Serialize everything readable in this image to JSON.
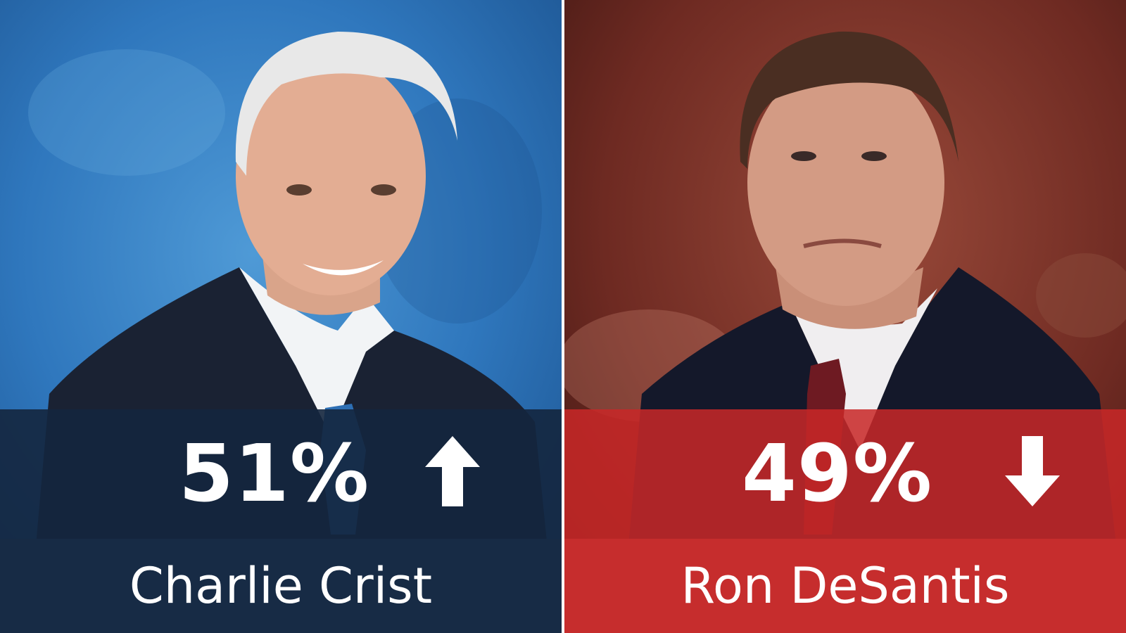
{
  "candidates": [
    {
      "name": "Charlie Crist",
      "percent": "51%",
      "trend": "up",
      "trend_icon": "arrow-up-icon",
      "band_color": "#14263e",
      "name_bar_color": "#172b45"
    },
    {
      "name": "Ron DeSantis",
      "percent": "49%",
      "trend": "down",
      "trend_icon": "arrow-down-icon",
      "band_color": "#c82828",
      "name_bar_color": "#c62d2d"
    }
  ]
}
